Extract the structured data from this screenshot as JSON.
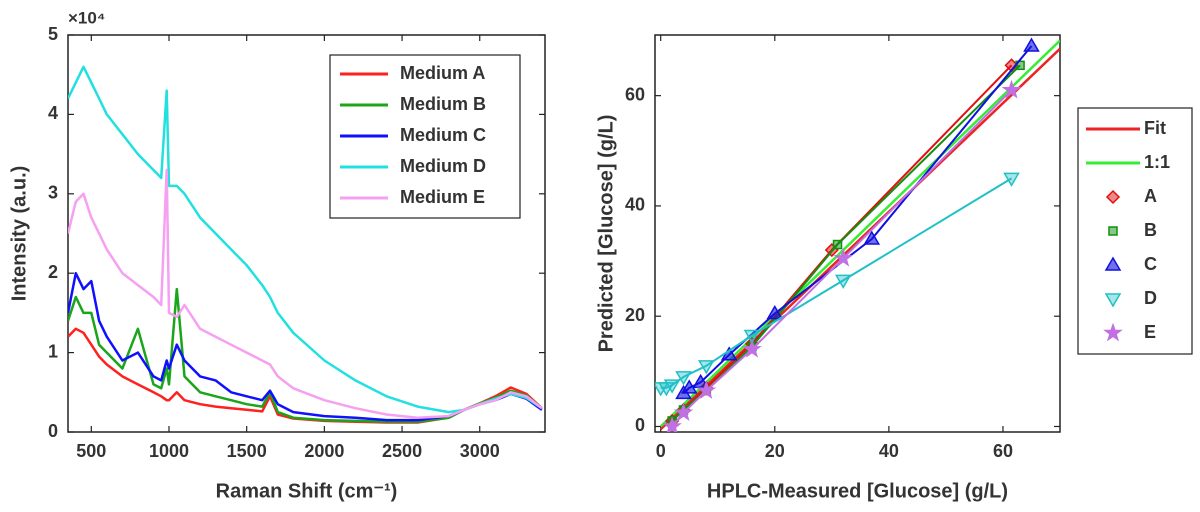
{
  "chart_data": [
    {
      "type": "line",
      "y_multiplier": "×10⁴",
      "xlabel": "Raman Shift (cm⁻¹)",
      "ylabel": "Intensity (a.u.)",
      "x": [
        350,
        400,
        450,
        500,
        550,
        600,
        700,
        800,
        900,
        950,
        985,
        1000,
        1050,
        1100,
        1200,
        1300,
        1400,
        1500,
        1600,
        1650,
        1700,
        1800,
        2000,
        2200,
        2400,
        2600,
        2800,
        2900,
        3000,
        3100,
        3200,
        3300,
        3400
      ],
      "xlim": [
        350,
        3420
      ],
      "xticks": [
        500,
        1000,
        1500,
        2000,
        2500,
        3000
      ],
      "ylim": [
        0,
        50000
      ],
      "yticks": [
        {
          "value": 0,
          "label": "0"
        },
        {
          "value": 10000,
          "label": "1"
        },
        {
          "value": 20000,
          "label": "2"
        },
        {
          "value": 30000,
          "label": "3"
        },
        {
          "value": 40000,
          "label": "4"
        },
        {
          "value": 50000,
          "label": "5"
        }
      ],
      "legend": "upper right",
      "series": [
        {
          "name": "Medium A",
          "color": "#ff2020",
          "values": [
            12000,
            13000,
            12500,
            11000,
            9500,
            8500,
            7000,
            6000,
            5000,
            4500,
            4000,
            4000,
            5000,
            4000,
            3500,
            3200,
            3000,
            2800,
            2600,
            4500,
            2200,
            1700,
            1400,
            1300,
            1200,
            1200,
            1800,
            2800,
            3600,
            4500,
            5600,
            4800,
            3000
          ]
        },
        {
          "name": "Medium B",
          "color": "#1aa51a",
          "values": [
            14000,
            17000,
            15000,
            15000,
            11000,
            10000,
            8000,
            13000,
            6000,
            5500,
            8000,
            6000,
            18000,
            7000,
            5000,
            4500,
            4000,
            3500,
            3200,
            5000,
            2500,
            1800,
            1500,
            1400,
            1300,
            1300,
            1800,
            2800,
            3600,
            4300,
            5200,
            4600,
            3000
          ]
        },
        {
          "name": "Medium C",
          "color": "#1010ff",
          "values": [
            15000,
            20000,
            18000,
            19000,
            14000,
            12000,
            9000,
            10000,
            7000,
            6500,
            9000,
            8000,
            11000,
            9000,
            7000,
            6500,
            5000,
            4500,
            4000,
            5200,
            3500,
            2500,
            2000,
            1800,
            1500,
            1500,
            2000,
            2800,
            3500,
            4000,
            4800,
            4200,
            2800
          ]
        },
        {
          "name": "Medium D",
          "color": "#22e0e0",
          "values": [
            42000,
            44000,
            46000,
            44000,
            42000,
            40000,
            37500,
            35000,
            33000,
            32000,
            43000,
            31000,
            31000,
            30000,
            27000,
            25000,
            23000,
            21000,
            18500,
            17000,
            15000,
            12500,
            9000,
            6500,
            4500,
            3200,
            2500,
            2800,
            3500,
            4200,
            4800,
            4300,
            3000
          ]
        },
        {
          "name": "Medium E",
          "color": "#f5a0f0",
          "values": [
            25000,
            29000,
            30000,
            27000,
            25000,
            23000,
            20000,
            18500,
            17000,
            16000,
            33000,
            15000,
            14500,
            16000,
            13000,
            12000,
            11000,
            10000,
            9000,
            8500,
            7000,
            5500,
            4000,
            3000,
            2200,
            1800,
            2000,
            2800,
            3500,
            4000,
            5000,
            4500,
            3000
          ]
        }
      ]
    },
    {
      "type": "line",
      "xlabel": "HPLC-Measured [Glucose] (g/L)",
      "ylabel": "Predicted [Glucose] (g/L)",
      "xlim": [
        -1,
        70
      ],
      "xticks": [
        0,
        20,
        40,
        60
      ],
      "ylim": [
        -1,
        71
      ],
      "yticks": [
        0,
        20,
        40,
        60
      ],
      "legend": "outside right",
      "series": [
        {
          "name": "Fit",
          "color": "#ee2222",
          "x": [
            0,
            70
          ],
          "values": [
            -0.5,
            68.5
          ]
        },
        {
          "name": "1:1",
          "color": "#33ee33",
          "x": [
            0,
            70
          ],
          "values": [
            0,
            70
          ]
        },
        {
          "name": "A",
          "color": "#e01010",
          "marker": "diamond",
          "x": [
            2,
            4,
            8,
            16,
            30,
            61.5
          ],
          "values": [
            1,
            3,
            7,
            15,
            32,
            65.5
          ]
        },
        {
          "name": "B",
          "color": "#109010",
          "marker": "square",
          "x": [
            2,
            4,
            8,
            16,
            31,
            63
          ],
          "values": [
            1,
            3,
            6.5,
            14.5,
            33,
            65.5
          ]
        },
        {
          "name": "C",
          "color": "#1010e0",
          "marker": "triangle-up",
          "x": [
            4,
            5,
            7,
            12,
            20,
            37,
            65
          ],
          "values": [
            6,
            7,
            8,
            13,
            20.5,
            34,
            69
          ]
        },
        {
          "name": "D",
          "color": "#20c0c8",
          "marker": "triangle-down",
          "x": [
            0,
            1,
            2,
            4,
            8,
            16,
            32,
            61.5
          ],
          "values": [
            7,
            7,
            7.5,
            9,
            11,
            16.5,
            26.5,
            45
          ]
        },
        {
          "name": "E",
          "color": "#c070e0",
          "marker": "star",
          "x": [
            2,
            4,
            8,
            16,
            32,
            61.5
          ],
          "values": [
            0,
            2.5,
            6.5,
            14,
            30.5,
            61
          ]
        }
      ]
    }
  ]
}
